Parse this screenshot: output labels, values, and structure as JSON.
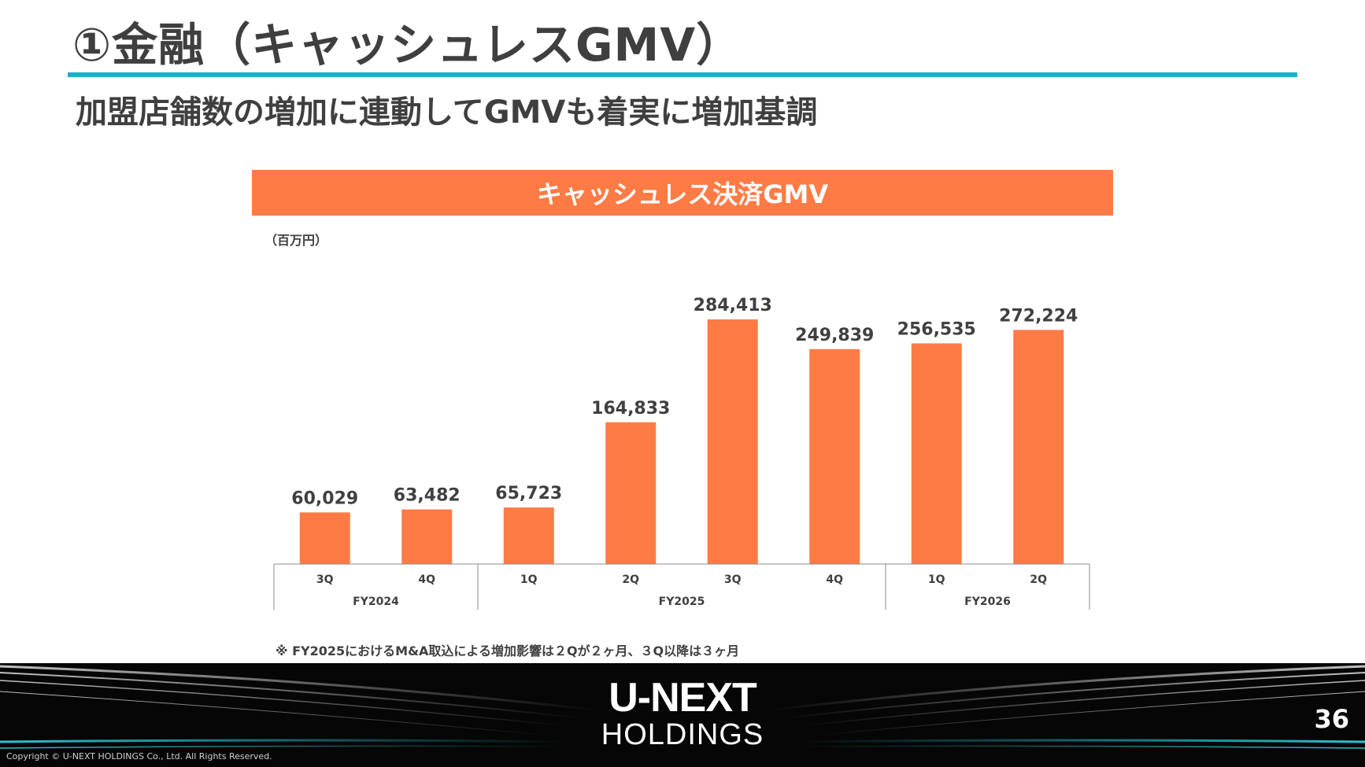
{
  "page": {
    "title": "①金融（キャッシュレスGMV）",
    "subtitle": "加盟店舗数の増加に連動してGMVも着実に増加基調",
    "page_number": "36",
    "copyright": "Copyright © U-NEXT HOLDINGS Co., Ltd. All Rights Reserved.",
    "note": "※ FY2025におけるM&A取込による増加影響は２Qが２ヶ月、３Q以降は３ヶ月",
    "logo": {
      "top": "U-NEXT",
      "bottom": "HOLDINGS"
    }
  },
  "chart_data": {
    "type": "bar",
    "title": "キャッシュレス決済GMV",
    "unit_label": "（百万円）",
    "categories": [
      "3Q",
      "4Q",
      "1Q",
      "2Q",
      "3Q",
      "4Q",
      "1Q",
      "2Q"
    ],
    "values": [
      60029,
      63482,
      65723,
      164833,
      284413,
      249839,
      256535,
      272224
    ],
    "value_labels": [
      "60,029",
      "63,482",
      "65,723",
      "164,833",
      "284,413",
      "249,839",
      "256,535",
      "272,224"
    ],
    "groups": [
      {
        "label": "FY2024",
        "count": 2
      },
      {
        "label": "FY2025",
        "count": 4
      },
      {
        "label": "FY2026",
        "count": 2
      }
    ],
    "ylim": [
      0,
      284413
    ],
    "bar_color": "#ff7b45",
    "grid": false,
    "legend": "none"
  }
}
